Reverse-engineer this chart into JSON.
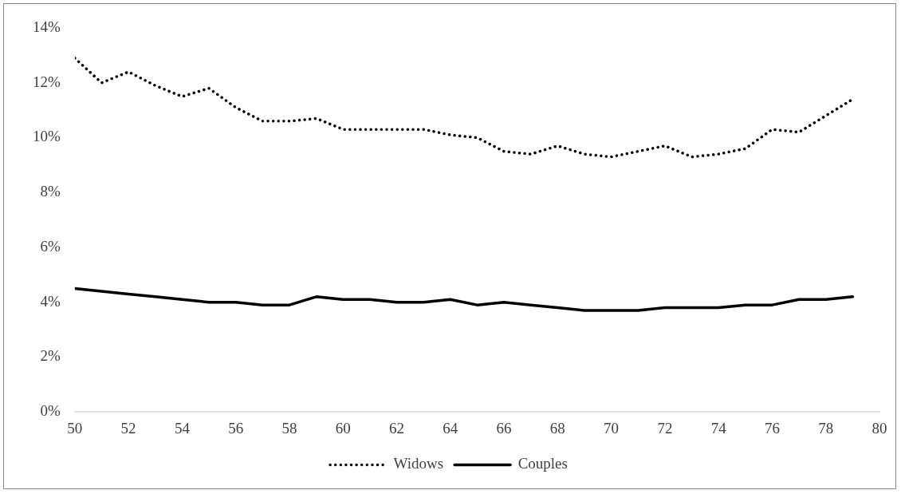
{
  "chart_data": {
    "type": "line",
    "x": [
      50,
      51,
      52,
      53,
      54,
      55,
      56,
      57,
      58,
      59,
      60,
      61,
      62,
      63,
      64,
      65,
      66,
      67,
      68,
      69,
      70,
      71,
      72,
      73,
      74,
      75,
      76,
      77,
      78,
      79
    ],
    "series": [
      {
        "name": "Widows",
        "color": "#000000",
        "line_style": "dotted",
        "values": [
          12.9,
          12.0,
          12.4,
          11.9,
          11.5,
          11.8,
          11.1,
          10.6,
          10.6,
          10.7,
          10.3,
          10.3,
          10.3,
          10.3,
          10.1,
          10.0,
          9.5,
          9.4,
          9.7,
          9.4,
          9.3,
          9.5,
          9.7,
          9.3,
          9.4,
          9.6,
          10.3,
          10.2,
          10.8,
          11.4
        ]
      },
      {
        "name": "Couples",
        "color": "#000000",
        "line_style": "solid",
        "values": [
          4.5,
          4.4,
          4.3,
          4.2,
          4.1,
          4.0,
          4.0,
          3.9,
          3.9,
          4.2,
          4.1,
          4.1,
          4.0,
          4.0,
          4.1,
          3.9,
          4.0,
          3.9,
          3.8,
          3.7,
          3.7,
          3.7,
          3.8,
          3.8,
          3.8,
          3.9,
          3.9,
          4.1,
          4.1,
          4.2
        ]
      }
    ],
    "xlim": [
      50,
      80
    ],
    "xticks": [
      50,
      52,
      54,
      56,
      58,
      60,
      62,
      64,
      66,
      68,
      70,
      72,
      74,
      76,
      78,
      80
    ],
    "ylim": [
      0,
      14
    ],
    "yticks": [
      {
        "value": 0,
        "label": "0%"
      },
      {
        "value": 2,
        "label": "2%"
      },
      {
        "value": 4,
        "label": "4%"
      },
      {
        "value": 6,
        "label": "6%"
      },
      {
        "value": 8,
        "label": "8%"
      },
      {
        "value": 10,
        "label": "10%"
      },
      {
        "value": 12,
        "label": "12%"
      },
      {
        "value": 14,
        "label": "14%"
      }
    ],
    "grid": false,
    "legend": "bottom",
    "marker": "none"
  }
}
